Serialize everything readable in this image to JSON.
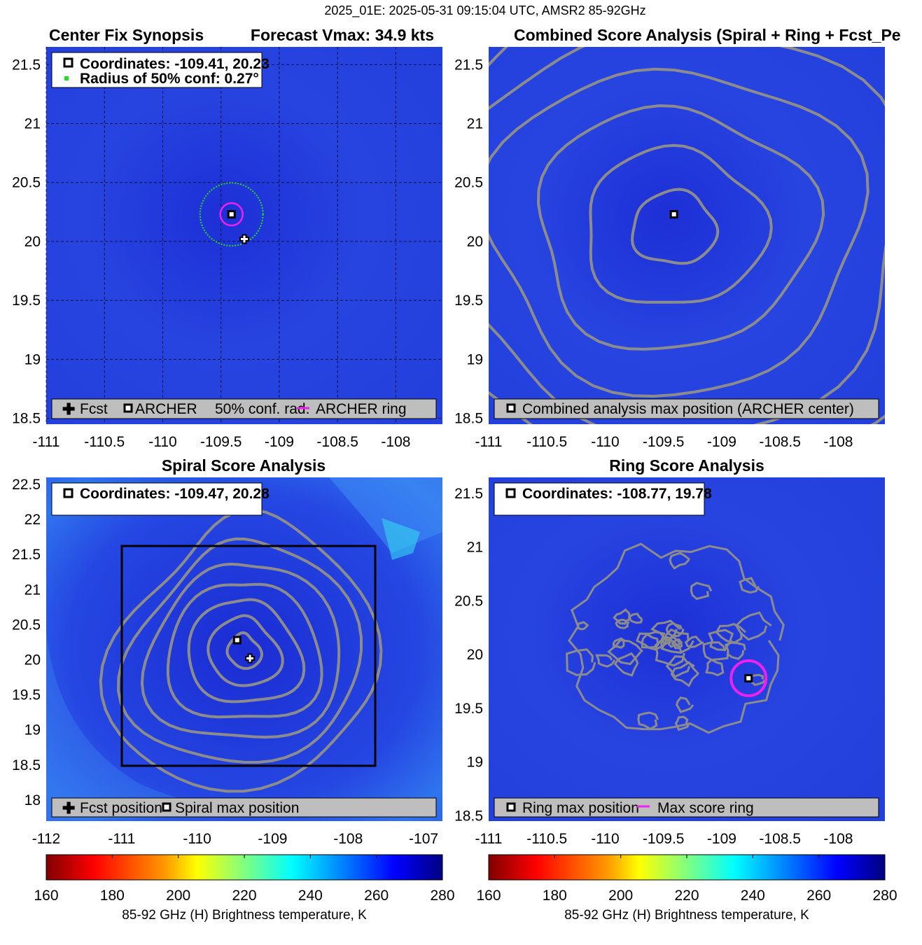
{
  "suptitle": "2025_01E: 2025-05-31 09:15:04 UTC, AMSR2 85-92GHz",
  "colors": {
    "background_blue": "#1f36dc",
    "contour": "#8c8c8c",
    "conf_circle": "#22dd22",
    "ring": "#ee22ee",
    "legend_bg": "#bebebe"
  },
  "panels": {
    "synopsis": {
      "title_left": "Center Fix Synopsis",
      "title_right": "Forecast Vmax: 34.9 kts",
      "info_line1": "Coordinates: -109.41, 20.23",
      "info_line2": "Radius of 50% conf: 0.27°",
      "legend": [
        "Fcst",
        "ARCHER",
        "50% conf. rad.",
        "ARCHER ring"
      ],
      "x_ticks": [
        "-111",
        "-110.5",
        "-110",
        "-109.5",
        "-109",
        "-108.5",
        "-108"
      ],
      "y_ticks": [
        "21.5",
        "21",
        "20.5",
        "20",
        "19.5",
        "19",
        "18.5"
      ]
    },
    "combined": {
      "title": "Combined Score Analysis (Spiral + Ring + Fcst_Pe",
      "legend": [
        "Combined analysis max position (ARCHER center)"
      ],
      "x_ticks": [
        "-111",
        "-110.5",
        "-110",
        "-109.5",
        "-109",
        "-108.5",
        "-108"
      ],
      "y_ticks": [
        "21.5",
        "21",
        "20.5",
        "20",
        "19.5",
        "19",
        "18.5"
      ]
    },
    "spiral": {
      "title": "Spiral Score Analysis",
      "info_line1": "Coordinates: -109.47, 20.28",
      "legend": [
        "Fcst position",
        "Spiral max position"
      ],
      "x_ticks": [
        "-112",
        "-111",
        "-110",
        "-109",
        "-108",
        "-107"
      ],
      "y_ticks": [
        "22.5",
        "22",
        "21.5",
        "21",
        "20.5",
        "20",
        "19.5",
        "19",
        "18.5",
        "18"
      ]
    },
    "ring": {
      "title": "Ring Score Analysis",
      "info_line1": "Coordinates: -108.77, 19.78",
      "legend": [
        "Ring max position",
        "Max score ring"
      ],
      "x_ticks": [
        "-111",
        "-110.5",
        "-110",
        "-109.5",
        "-109",
        "-108.5",
        "-108"
      ],
      "y_ticks": [
        "21.5",
        "21",
        "20.5",
        "20",
        "19.5",
        "19",
        "18.5"
      ]
    }
  },
  "colorbars": {
    "ticks": [
      "160",
      "180",
      "200",
      "220",
      "240",
      "260",
      "280"
    ],
    "label": "85-92 GHz (H) Brightness temperature, K"
  },
  "chart_data": [
    {
      "type": "heatmap",
      "title": "Center Fix Synopsis",
      "xlim": [
        -111.0,
        -107.6
      ],
      "ylim": [
        18.45,
        21.65
      ],
      "archer_center": [
        -109.41,
        20.23
      ],
      "fcst_position": [
        -109.3,
        20.02
      ],
      "conf_radius_deg": 0.27
    },
    {
      "type": "heatmap",
      "title": "Combined Score Analysis (Spiral + Ring + Fcst_Pe",
      "xlim": [
        -111.0,
        -107.6
      ],
      "ylim": [
        18.45,
        21.65
      ],
      "max_position": [
        -109.41,
        20.23
      ]
    },
    {
      "type": "heatmap",
      "title": "Spiral Score Analysis",
      "xlim": [
        -112.0,
        -106.75
      ],
      "ylim": [
        17.7,
        22.6
      ],
      "spiral_max": [
        -109.47,
        20.28
      ],
      "fcst_position": [
        -109.3,
        20.02
      ]
    },
    {
      "type": "heatmap",
      "title": "Ring Score Analysis",
      "xlim": [
        -111.0,
        -107.6
      ],
      "ylim": [
        18.45,
        21.65
      ],
      "ring_max": [
        -108.77,
        19.78
      ]
    }
  ]
}
